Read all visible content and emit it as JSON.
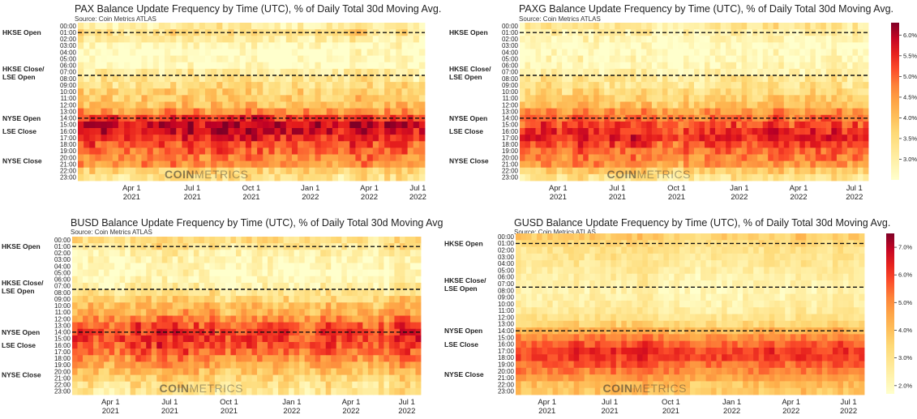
{
  "chart_data": [
    {
      "type": "heatmap",
      "title": "PAX Balance Update Frequency by Time (UTC), % of Daily Total 30d Moving Avg.",
      "source": "Source: Coin Metrics ATLAS",
      "watermark": {
        "bold": "COIN",
        "light": "METRICS"
      },
      "y_categories": [
        "00:00",
        "01:00",
        "02:00",
        "03:00",
        "04:00",
        "05:00",
        "06:00",
        "07:00",
        "08:00",
        "09:00",
        "10:00",
        "11:00",
        "12:00",
        "13:00",
        "14:00",
        "15:00",
        "16:00",
        "17:00",
        "18:00",
        "19:00",
        "20:00",
        "21:00",
        "22:00",
        "23:00"
      ],
      "x_ticks": [
        {
          "label": [
            "Apr 1",
            "2021"
          ],
          "pos": 0.155
        },
        {
          "label": [
            "Jul 1",
            "2021"
          ],
          "pos": 0.33
        },
        {
          "label": [
            "Oct 1",
            "2021"
          ],
          "pos": 0.5
        },
        {
          "label": [
            "Jan 1",
            "2022"
          ],
          "pos": 0.67
        },
        {
          "label": [
            "Apr 1",
            "2022"
          ],
          "pos": 0.84
        },
        {
          "label": [
            "Jul 1",
            "2022"
          ],
          "pos": 0.98
        }
      ],
      "session_lines": [
        {
          "label": [
            "HKSE Open"
          ],
          "hour": 1.5,
          "label_hour": 1.5
        },
        {
          "label": [
            "HKSE Close/",
            "LSE Open"
          ],
          "hour": 8.0,
          "label_hour": 7.0
        },
        {
          "label": [
            "NYSE Open"
          ],
          "hour": 14.5,
          "label_hour": 14.5
        },
        {
          "label": [
            "LSE Close"
          ],
          "hour": null,
          "label_hour": 16.5
        },
        {
          "label": [
            "NYSE Close"
          ],
          "hour": null,
          "label_hour": 21.0
        }
      ],
      "hourly_profile_pct": [
        3.0,
        3.3,
        3.0,
        2.6,
        2.5,
        2.5,
        2.6,
        3.0,
        3.2,
        3.4,
        3.6,
        3.7,
        3.9,
        4.4,
        5.2,
        5.6,
        5.6,
        5.3,
        5.0,
        4.8,
        4.6,
        4.4,
        3.6,
        3.3
      ],
      "range_pct": [
        2.5,
        6.0
      ],
      "n_periods": 60,
      "colorbar": null
    },
    {
      "type": "heatmap",
      "title": "PAXG Balance Update Frequency by Time (UTC), % of Daily Total 30d Moving Avg.",
      "source": "Source: Coin Metrics ATLAS",
      "watermark": {
        "bold": "COIN",
        "light": "METRICS"
      },
      "y_categories": [
        "00:00",
        "01:00",
        "02:00",
        "03:00",
        "04:00",
        "05:00",
        "06:00",
        "07:00",
        "08:00",
        "09:00",
        "10:00",
        "11:00",
        "12:00",
        "13:00",
        "14:00",
        "15:00",
        "16:00",
        "17:00",
        "18:00",
        "19:00",
        "20:00",
        "21:00",
        "22:00",
        "23:00"
      ],
      "x_ticks": [
        {
          "label": [
            "Apr 1",
            "2021"
          ],
          "pos": 0.11
        },
        {
          "label": [
            "Jul 1",
            "2021"
          ],
          "pos": 0.28
        },
        {
          "label": [
            "Oct 1",
            "2021"
          ],
          "pos": 0.45
        },
        {
          "label": [
            "Jan 1",
            "2022"
          ],
          "pos": 0.63
        },
        {
          "label": [
            "Apr 1",
            "2022"
          ],
          "pos": 0.8
        },
        {
          "label": [
            "Jul 1",
            "2022"
          ],
          "pos": 0.96
        }
      ],
      "session_lines": [
        {
          "label": [
            "HKSE Open"
          ],
          "hour": 1.5,
          "label_hour": 1.5
        },
        {
          "label": [
            "HKSE Close/",
            "LSE Open"
          ],
          "hour": 8.0,
          "label_hour": 7.0
        },
        {
          "label": [
            "NYSE Open"
          ],
          "hour": 14.5,
          "label_hour": 14.5
        },
        {
          "label": [
            "LSE Close"
          ],
          "hour": null,
          "label_hour": 16.5
        },
        {
          "label": [
            "NYSE Close"
          ],
          "hour": null,
          "label_hour": 21.0
        }
      ],
      "hourly_profile_pct": [
        3.2,
        2.9,
        2.7,
        2.5,
        2.5,
        2.6,
        2.7,
        2.9,
        3.2,
        3.3,
        3.5,
        3.7,
        4.0,
        4.5,
        4.9,
        5.2,
        5.4,
        5.5,
        5.2,
        4.9,
        4.7,
        4.5,
        3.8,
        3.3
      ],
      "range_pct": [
        2.5,
        6.3
      ],
      "n_periods": 66,
      "colorbar": {
        "ticks": [
          "6.0%",
          "5.5%",
          "5.0%",
          "4.5%",
          "4.0%",
          "3.5%",
          "3.0%"
        ],
        "values": [
          6.0,
          5.5,
          5.0,
          4.5,
          4.0,
          3.5,
          3.0
        ],
        "min": 2.5,
        "max": 6.3
      }
    },
    {
      "type": "heatmap",
      "title": "BUSD Balance Update Frequency by Time (UTC), % of Daily Total 30d Moving Avg.",
      "source": "Source: Coin Metrics ATLAS",
      "watermark": {
        "bold": "COIN",
        "light": "METRICS"
      },
      "y_categories": [
        "00:00",
        "01:00",
        "02:00",
        "03:00",
        "04:00",
        "05:00",
        "06:00",
        "07:00",
        "08:00",
        "09:00",
        "10:00",
        "11:00",
        "12:00",
        "13:00",
        "14:00",
        "15:00",
        "16:00",
        "17:00",
        "18:00",
        "19:00",
        "20:00",
        "21:00",
        "22:00",
        "23:00"
      ],
      "x_ticks": [
        {
          "label": [
            "Apr 1",
            "2021"
          ],
          "pos": 0.11
        },
        {
          "label": [
            "Jul 1",
            "2021"
          ],
          "pos": 0.28
        },
        {
          "label": [
            "Oct 1",
            "2021"
          ],
          "pos": 0.45
        },
        {
          "label": [
            "Jan 1",
            "2022"
          ],
          "pos": 0.63
        },
        {
          "label": [
            "Apr 1",
            "2022"
          ],
          "pos": 0.8
        },
        {
          "label": [
            "Jul 1",
            "2022"
          ],
          "pos": 0.96
        }
      ],
      "session_lines": [
        {
          "label": [
            "HKSE Open"
          ],
          "hour": 1.5,
          "label_hour": 1.5
        },
        {
          "label": [
            "HKSE Close/",
            "LSE Open"
          ],
          "hour": 8.0,
          "label_hour": 7.0
        },
        {
          "label": [
            "NYSE Open"
          ],
          "hour": 14.5,
          "label_hour": 14.5
        },
        {
          "label": [
            "LSE Close"
          ],
          "hour": null,
          "label_hour": 16.5
        },
        {
          "label": [
            "NYSE Close"
          ],
          "hour": null,
          "label_hour": 21.0
        }
      ],
      "hourly_profile_pct": [
        3.4,
        3.2,
        2.9,
        2.7,
        2.6,
        2.6,
        2.7,
        2.9,
        3.2,
        3.6,
        3.9,
        4.1,
        4.5,
        4.9,
        5.1,
        5.1,
        5.0,
        4.8,
        4.5,
        4.2,
        3.9,
        3.6,
        3.3,
        3.2
      ],
      "range_pct": [
        2.5,
        6.0
      ],
      "n_periods": 66,
      "colorbar": null
    },
    {
      "type": "heatmap",
      "title": "GUSD Balance Update Frequency by Time (UTC), % of Daily Total 30d Moving Avg.",
      "source": "Source: Coin Metrics ATLAS",
      "watermark": {
        "bold": "COIN",
        "light": "METRICS"
      },
      "y_categories": [
        "00:00",
        "01:00",
        "02:00",
        "03:00",
        "04:00",
        "05:00",
        "06:00",
        "07:00",
        "08:00",
        "09:00",
        "10:00",
        "11:00",
        "12:00",
        "13:00",
        "14:00",
        "15:00",
        "16:00",
        "17:00",
        "18:00",
        "19:00",
        "20:00",
        "21:00",
        "22:00",
        "23:00"
      ],
      "x_ticks": [
        {
          "label": [
            "Apr 1",
            "2021"
          ],
          "pos": 0.09
        },
        {
          "label": [
            "Jul 1",
            "2021"
          ],
          "pos": 0.27
        },
        {
          "label": [
            "Oct 1",
            "2021"
          ],
          "pos": 0.445
        },
        {
          "label": [
            "Jan 1",
            "2022"
          ],
          "pos": 0.62
        },
        {
          "label": [
            "Apr 1",
            "2022"
          ],
          "pos": 0.79
        },
        {
          "label": [
            "Jul 1",
            "2022"
          ],
          "pos": 0.955
        }
      ],
      "session_lines": [
        {
          "label": [
            "HKSE Open"
          ],
          "hour": 1.5,
          "label_hour": 1.5
        },
        {
          "label": [
            "HKSE Close/",
            "LSE Open"
          ],
          "hour": 8.0,
          "label_hour": 7.0
        },
        {
          "label": [
            "NYSE Open"
          ],
          "hour": 14.5,
          "label_hour": 14.5
        },
        {
          "label": [
            "LSE Close"
          ],
          "hour": null,
          "label_hour": 16.5
        },
        {
          "label": [
            "NYSE Close"
          ],
          "hour": null,
          "label_hour": 21.0
        }
      ],
      "hourly_profile_pct": [
        3.6,
        3.2,
        2.9,
        2.8,
        2.7,
        2.5,
        2.4,
        2.3,
        2.2,
        2.3,
        2.4,
        2.6,
        2.9,
        3.4,
        4.2,
        5.0,
        5.6,
        6.0,
        5.9,
        5.5,
        5.1,
        4.6,
        4.0,
        3.8
      ],
      "range_pct": [
        1.7,
        7.5
      ],
      "n_periods": 66,
      "colorbar": {
        "ticks": [
          "7.0%",
          "6.0%",
          "5.0%",
          "4.0%",
          "3.0%",
          "2.0%"
        ],
        "values": [
          7.0,
          6.0,
          5.0,
          4.0,
          3.0,
          2.0
        ],
        "min": 1.7,
        "max": 7.5
      }
    }
  ]
}
